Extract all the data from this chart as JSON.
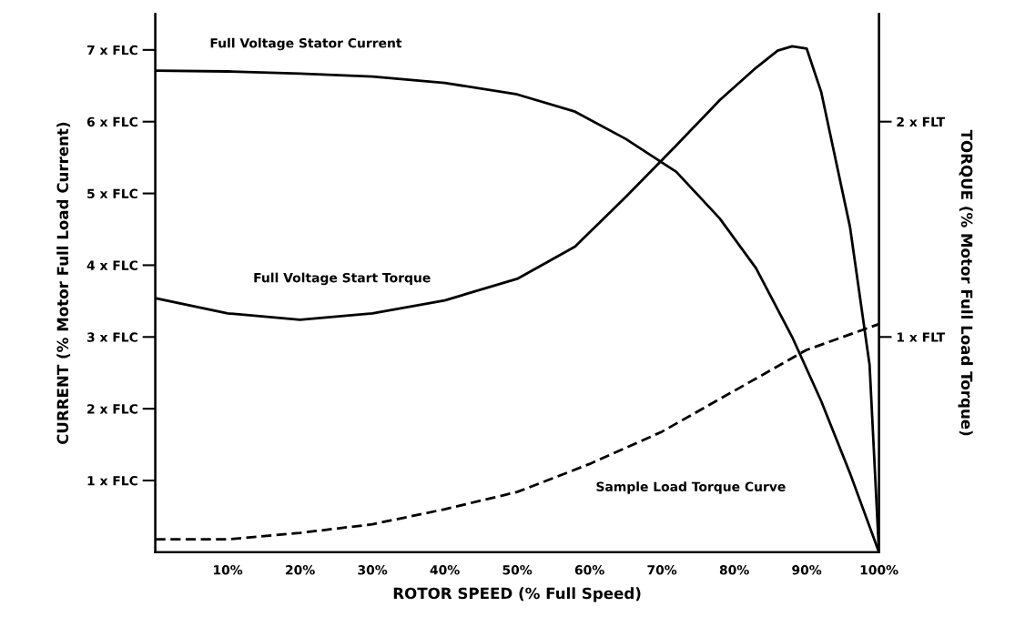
{
  "chart_data": {
    "type": "line",
    "xlabel": "ROTOR SPEED (% Full Speed)",
    "ylabel": "CURRENT (% Motor Full Load Current)",
    "y2label": "TORQUE (% Motor Full Load Torque)",
    "xlim": [
      0,
      100
    ],
    "ylim": [
      0,
      7.5
    ],
    "y2lim": [
      0,
      2.5
    ],
    "xticks": [
      {
        "value": 10,
        "label": "10%"
      },
      {
        "value": 20,
        "label": "20%"
      },
      {
        "value": 30,
        "label": "30%"
      },
      {
        "value": 40,
        "label": "40%"
      },
      {
        "value": 50,
        "label": "50%"
      },
      {
        "value": 60,
        "label": "60%"
      },
      {
        "value": 70,
        "label": "70%"
      },
      {
        "value": 80,
        "label": "80%"
      },
      {
        "value": 90,
        "label": "90%"
      },
      {
        "value": 100,
        "label": "100%"
      }
    ],
    "yticks": [
      {
        "value": 1,
        "label": "1 x FLC"
      },
      {
        "value": 2,
        "label": "2 x FLC"
      },
      {
        "value": 3,
        "label": "3 x FLC"
      },
      {
        "value": 4,
        "label": "4 x FLC"
      },
      {
        "value": 5,
        "label": "5 x FLC"
      },
      {
        "value": 6,
        "label": "6 x FLC"
      },
      {
        "value": 7,
        "label": "7 x FLC"
      }
    ],
    "y2ticks": [
      {
        "value": 1,
        "label": "1 x FLT"
      },
      {
        "value": 2,
        "label": "2 x FLT"
      }
    ],
    "grid": false,
    "legend": false,
    "marker": "none",
    "series": [
      {
        "name": "Full Voltage Stator Current",
        "color": "#000000",
        "line_style": "solid",
        "x": [
          0,
          10,
          20,
          30,
          40,
          50,
          58,
          65,
          72,
          78,
          83,
          88,
          92,
          96,
          100
        ],
        "values": [
          6.71,
          6.7,
          6.67,
          6.63,
          6.54,
          6.38,
          6.14,
          5.76,
          5.3,
          4.65,
          3.96,
          3.0,
          2.11,
          1.1,
          0
        ]
      },
      {
        "name": "Full Voltage Start Torque",
        "color": "#000000",
        "line_style": "solid",
        "axis": "y2",
        "x": [
          0,
          10,
          20,
          30,
          40,
          50,
          58,
          65,
          72,
          78,
          83,
          86,
          88,
          90,
          92,
          96,
          98.7,
          100
        ],
        "values": [
          1.18,
          1.11,
          1.08,
          1.11,
          1.17,
          1.27,
          1.42,
          1.65,
          1.89,
          2.1,
          2.25,
          2.33,
          2.35,
          2.34,
          2.14,
          1.51,
          0.87,
          0
        ]
      },
      {
        "name": "Sample Load Torque Curve",
        "color": "#000000",
        "line_style": "dashed",
        "axis": "y2",
        "x": [
          0,
          10,
          20,
          30,
          40,
          50,
          60,
          70,
          80,
          90,
          100
        ],
        "values": [
          0.06,
          0.06,
          0.09,
          0.13,
          0.2,
          0.28,
          0.41,
          0.56,
          0.75,
          0.94,
          1.06
        ]
      }
    ]
  }
}
